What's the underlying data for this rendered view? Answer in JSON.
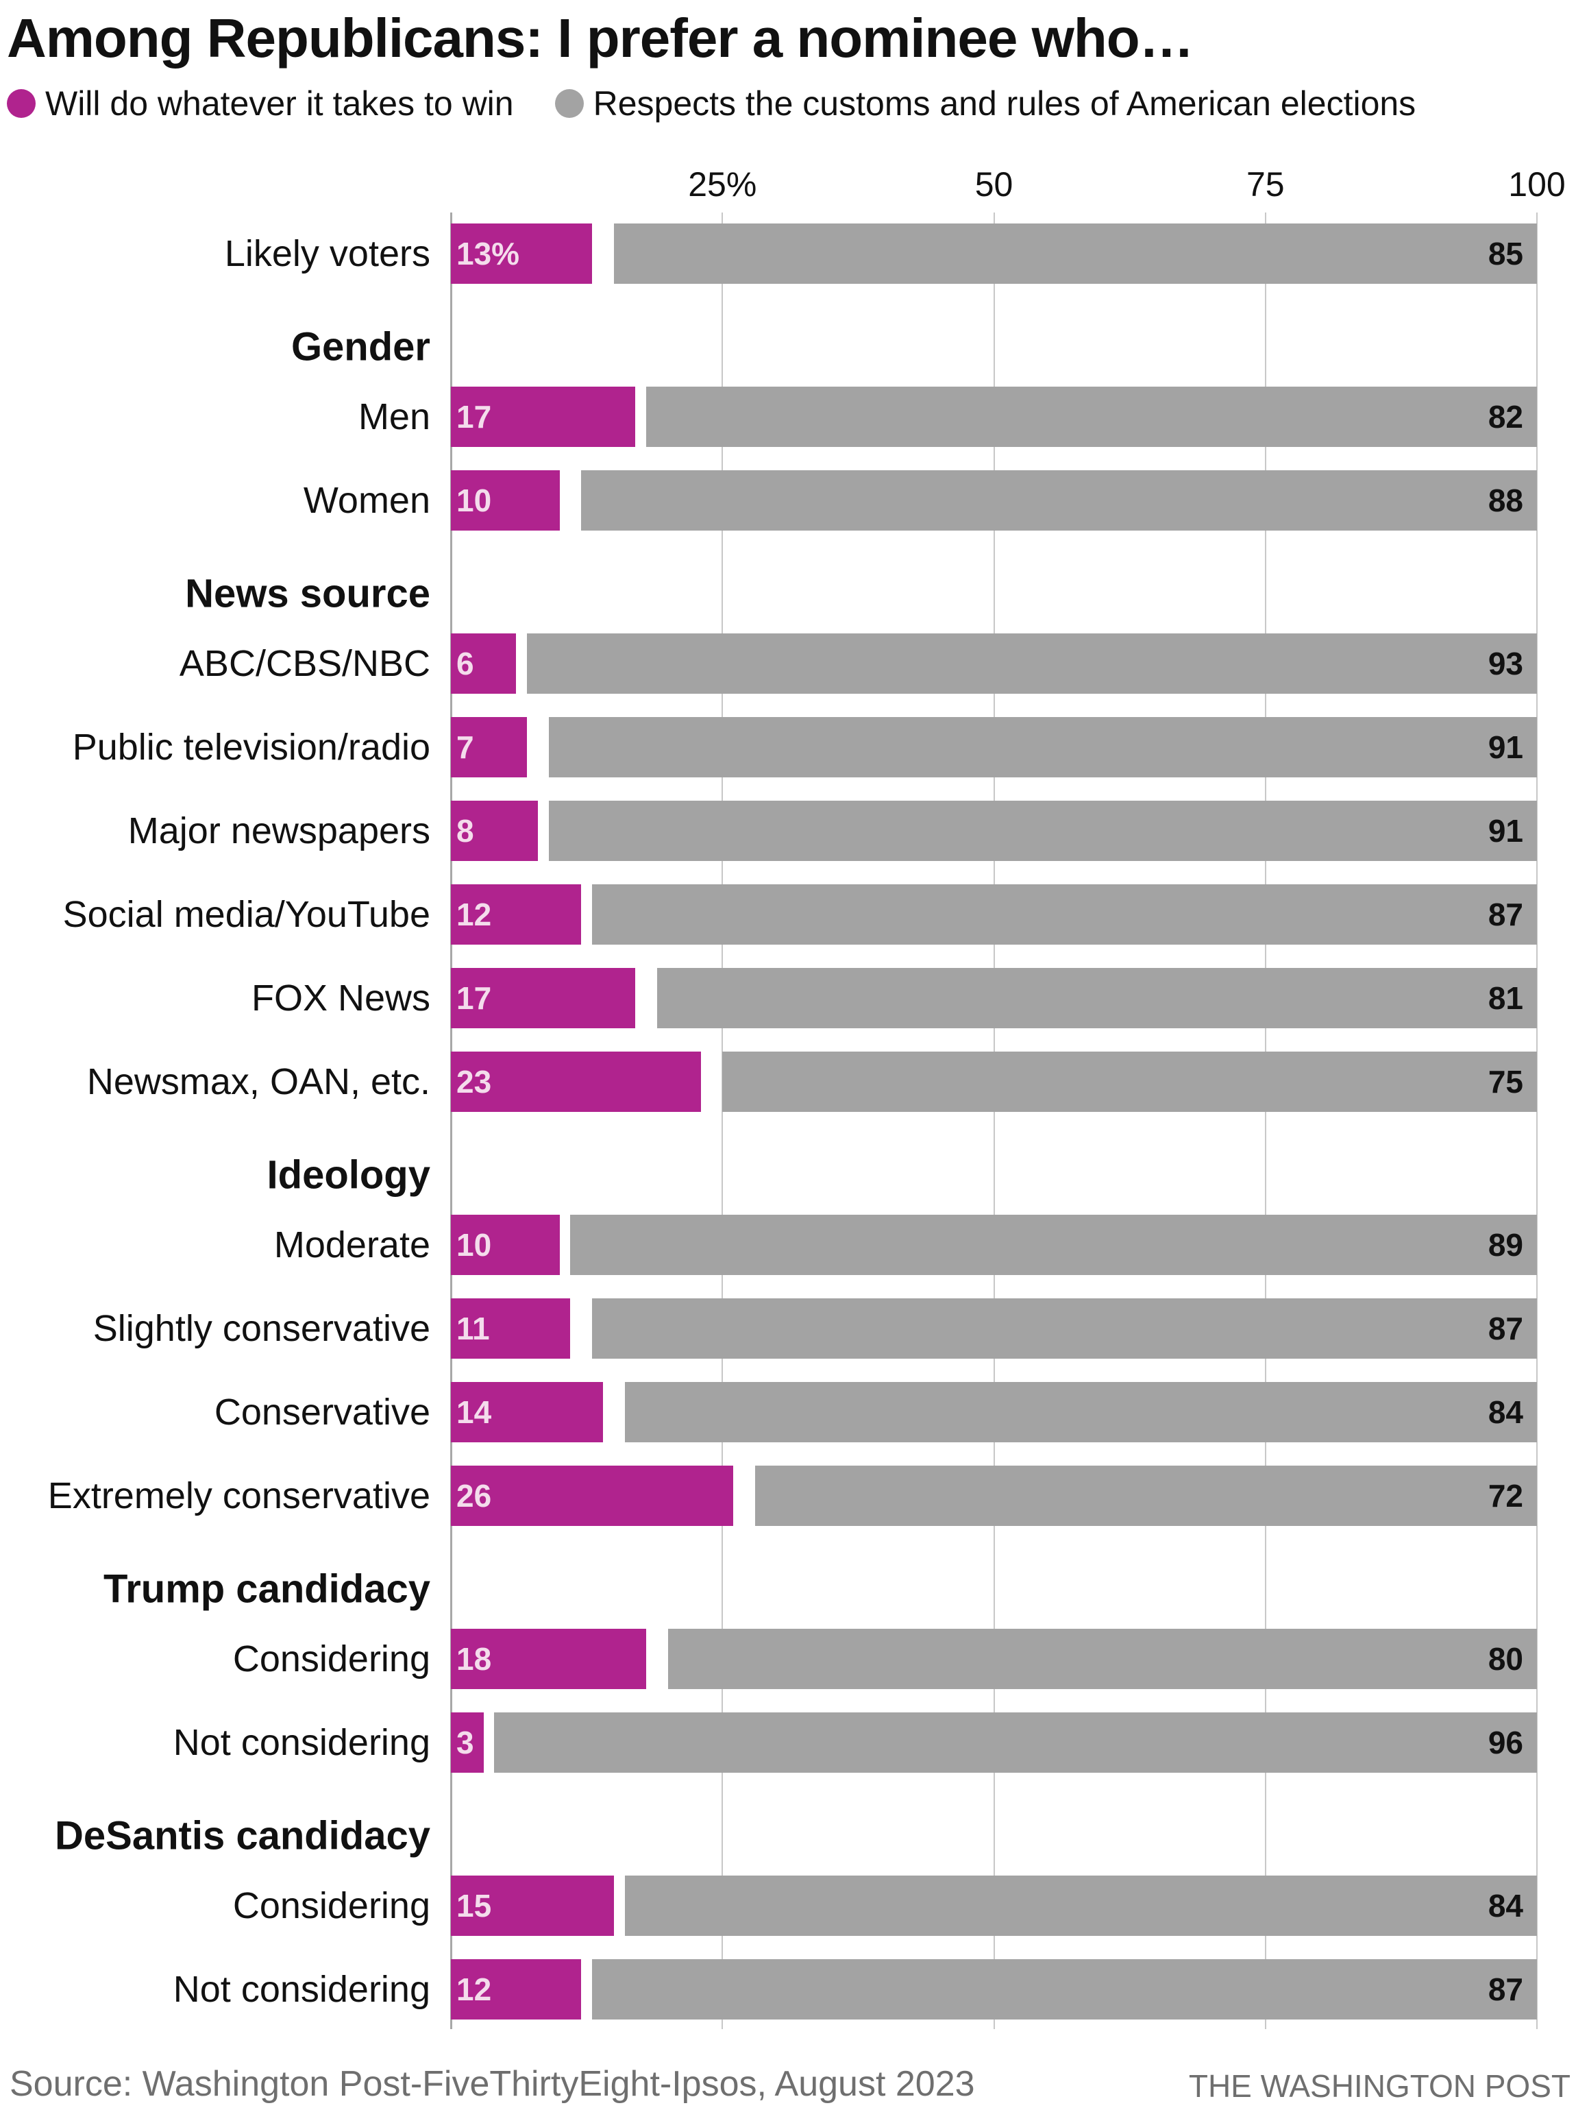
{
  "chart_data": {
    "type": "bar",
    "stacked": true,
    "orientation": "horizontal",
    "title": "Among Republicans: I prefer a nominee who…",
    "xlim": [
      0,
      100
    ],
    "ticks": [
      "25%",
      "50",
      "75",
      "100"
    ],
    "tick_values": [
      25,
      50,
      75,
      100
    ],
    "grid": true,
    "legend_placement": "top-left",
    "series": [
      {
        "name": "Will do whatever it takes to win",
        "color": "#b0238e"
      },
      {
        "name": "Respects the customs and rules of American elections",
        "color": "#a3a3a3"
      }
    ],
    "rows": [
      {
        "type": "row",
        "label": "Likely voters",
        "win": 13,
        "win_label": "13%",
        "respect": 85
      },
      {
        "type": "header",
        "label": "Gender"
      },
      {
        "type": "row",
        "label": "Men",
        "win": 17,
        "respect": 82
      },
      {
        "type": "row",
        "label": "Women",
        "win": 10,
        "respect": 88
      },
      {
        "type": "header",
        "label": "News source"
      },
      {
        "type": "row",
        "label": "ABC/CBS/NBC",
        "win": 6,
        "respect": 93
      },
      {
        "type": "row",
        "label": "Public television/radio",
        "win": 7,
        "respect": 91
      },
      {
        "type": "row",
        "label": "Major newspapers",
        "win": 8,
        "respect": 91
      },
      {
        "type": "row",
        "label": "Social media/YouTube",
        "win": 12,
        "respect": 87
      },
      {
        "type": "row",
        "label": "FOX News",
        "win": 17,
        "respect": 81
      },
      {
        "type": "row",
        "label": "Newsmax, OAN, etc.",
        "win": 23,
        "respect": 75
      },
      {
        "type": "header",
        "label": "Ideology"
      },
      {
        "type": "row",
        "label": "Moderate",
        "win": 10,
        "respect": 89
      },
      {
        "type": "row",
        "label": "Slightly conservative",
        "win": 11,
        "respect": 87
      },
      {
        "type": "row",
        "label": "Conservative",
        "win": 14,
        "respect": 84
      },
      {
        "type": "row",
        "label": "Extremely conservative",
        "win": 26,
        "respect": 72
      },
      {
        "type": "header",
        "label": "Trump candidacy"
      },
      {
        "type": "row",
        "label": "Considering",
        "win": 18,
        "respect": 80
      },
      {
        "type": "row",
        "label": "Not considering",
        "win": 3,
        "respect": 96
      },
      {
        "type": "header",
        "label": "DeSantis candidacy"
      },
      {
        "type": "row",
        "label": "Considering",
        "win": 15,
        "respect": 84
      },
      {
        "type": "row",
        "label": "Not considering",
        "win": 12,
        "respect": 87
      }
    ]
  },
  "footer": {
    "source": "Source: Washington Post-FiveThirtyEight-Ipsos, August 2023",
    "credit": "THE WASHINGTON POST"
  }
}
